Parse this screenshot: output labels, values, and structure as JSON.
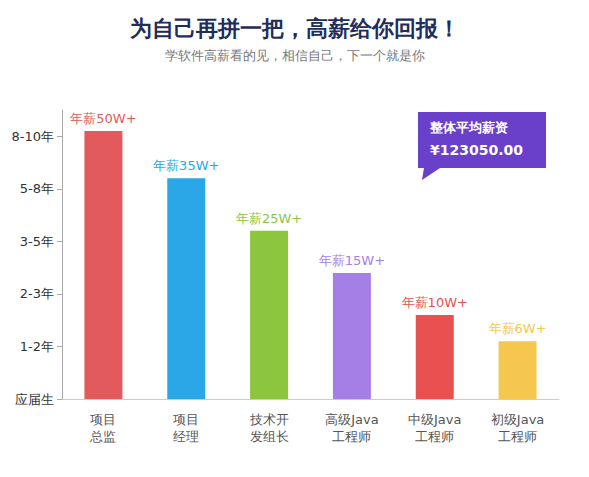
{
  "chart_data": {
    "type": "bar",
    "title": "为自己再拼一把，高薪给你回报！",
    "subtitle": "学软件高薪看的见，相信自己，下一个就是你",
    "categories": [
      "项目总监",
      "项目经理",
      "技术开发组长",
      "高级Java工程师",
      "中级Java工程师",
      "初级Java工程师"
    ],
    "values": [
      5.1,
      4.2,
      3.2,
      2.4,
      1.6,
      1.1
    ],
    "colors": [
      "#e35a5c",
      "#2aa7e6",
      "#8cc63f",
      "#a57fe6",
      "#e8514f",
      "#f5c74e"
    ],
    "annotations": [
      "年薪50W+",
      "年薪35W+",
      "年薪25W+",
      "年薪15W+",
      "年薪10W+",
      "年薪6W+"
    ],
    "callout": [
      "整体平均薪资",
      "¥123050.00"
    ],
    "ylim": [
      0,
      5.5
    ],
    "yticks": [
      {
        "value": 0,
        "label": "应届生"
      },
      {
        "value": 1,
        "label": "1-2年"
      },
      {
        "value": 2,
        "label": "2-3年"
      },
      {
        "value": 3,
        "label": "3-5年"
      },
      {
        "value": 4,
        "label": "5-8年"
      },
      {
        "value": 5,
        "label": "8-10年"
      }
    ],
    "grid": false
  }
}
